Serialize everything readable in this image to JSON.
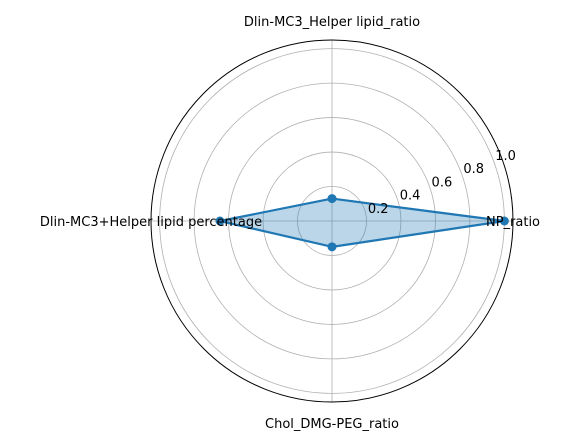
{
  "chart_data": {
    "type": "radar",
    "title": "",
    "axes": [
      "NP_ratio",
      "Dlin-MC3_Helper lipid_ratio",
      "Dlin-MC3+Helper lipid percentage",
      "Chol_DMG-PEG_ratio"
    ],
    "values": [
      1.0,
      0.13,
      0.65,
      0.15
    ],
    "rlim": [
      0,
      1.05
    ],
    "radial_ticks": [
      0.2,
      0.4,
      0.6,
      0.8,
      1.0
    ],
    "radial_tick_labels": [
      "0.2",
      "0.4",
      "0.6",
      "0.8",
      "1.0"
    ],
    "grid": true,
    "legend": "none"
  },
  "colors": {
    "series_line": "#1f77b4",
    "series_fill": "#1f77b4",
    "grid": "#b0b0b0",
    "outer_frame": "#000000"
  }
}
